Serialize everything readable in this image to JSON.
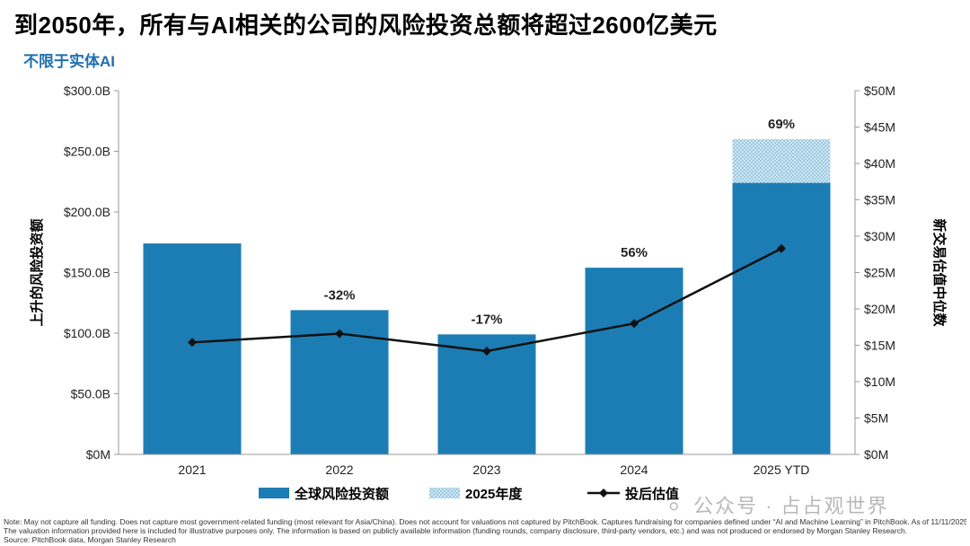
{
  "title": "到2050年，所有与AI相关的公司的风险投资总额将超过2600亿美元",
  "subtitle": "不限于实体AI",
  "chart_data": {
    "type": "bar",
    "categories": [
      "2021",
      "2022",
      "2023",
      "2024",
      "2025 YTD"
    ],
    "series": [
      {
        "name": "全球风险投资额",
        "axis": "left",
        "kind": "bar",
        "color": "#1c7db4",
        "values": [
          174,
          119,
          99,
          154,
          224
        ]
      },
      {
        "name": "2025年度",
        "axis": "left",
        "kind": "bar-stacked-pattern",
        "color": "#8ec3de",
        "values": [
          0,
          0,
          0,
          0,
          36
        ]
      },
      {
        "name": "投后估值",
        "axis": "right",
        "kind": "line",
        "color": "#111111",
        "values": [
          15.4,
          16.6,
          14.2,
          18.0,
          28.3
        ]
      }
    ],
    "bar_labels": [
      "",
      "-32%",
      "-17%",
      "56%",
      "69%"
    ],
    "ylabel": "上升的风险投资额",
    "y2label": "新交易估值中位数",
    "ylim": [
      0,
      300
    ],
    "y2lim": [
      0,
      50
    ],
    "yticks": [
      "$0M",
      "$50.0B",
      "$100.0B",
      "$150.0B",
      "$200.0B",
      "$250.0B",
      "$300.0B"
    ],
    "y2ticks": [
      "$0M",
      "$5M",
      "$10M",
      "$15M",
      "$20M",
      "$25M",
      "$30M",
      "$35M",
      "$40M",
      "$45M",
      "$50M"
    ],
    "legend": [
      "全球风险投资额",
      "2025年度",
      "投后估值"
    ],
    "legend_position": "bottom"
  },
  "footnote": {
    "line1": "Note: May not capture all funding. Does not capture most government-related funding (most relevant for Asia/China). Does not account for valuations not captured by PitchBook. Captures fundraising for companies defined under “AI and Machine Learning” in PitchBook. As of 11/11/2025.",
    "line2": "The valuation information provided here is included for illustrative purposes only. The information is based on publicly available information (funding rounds, company disclosure, third-party vendors, etc.) and was not produced or endorsed by Morgan Stanley Research.",
    "line3": "Source: PitchBook data, Morgan Stanley Research"
  },
  "watermark": "公众号 · 占占观世界",
  "watermark_icon": "wechat-icon"
}
